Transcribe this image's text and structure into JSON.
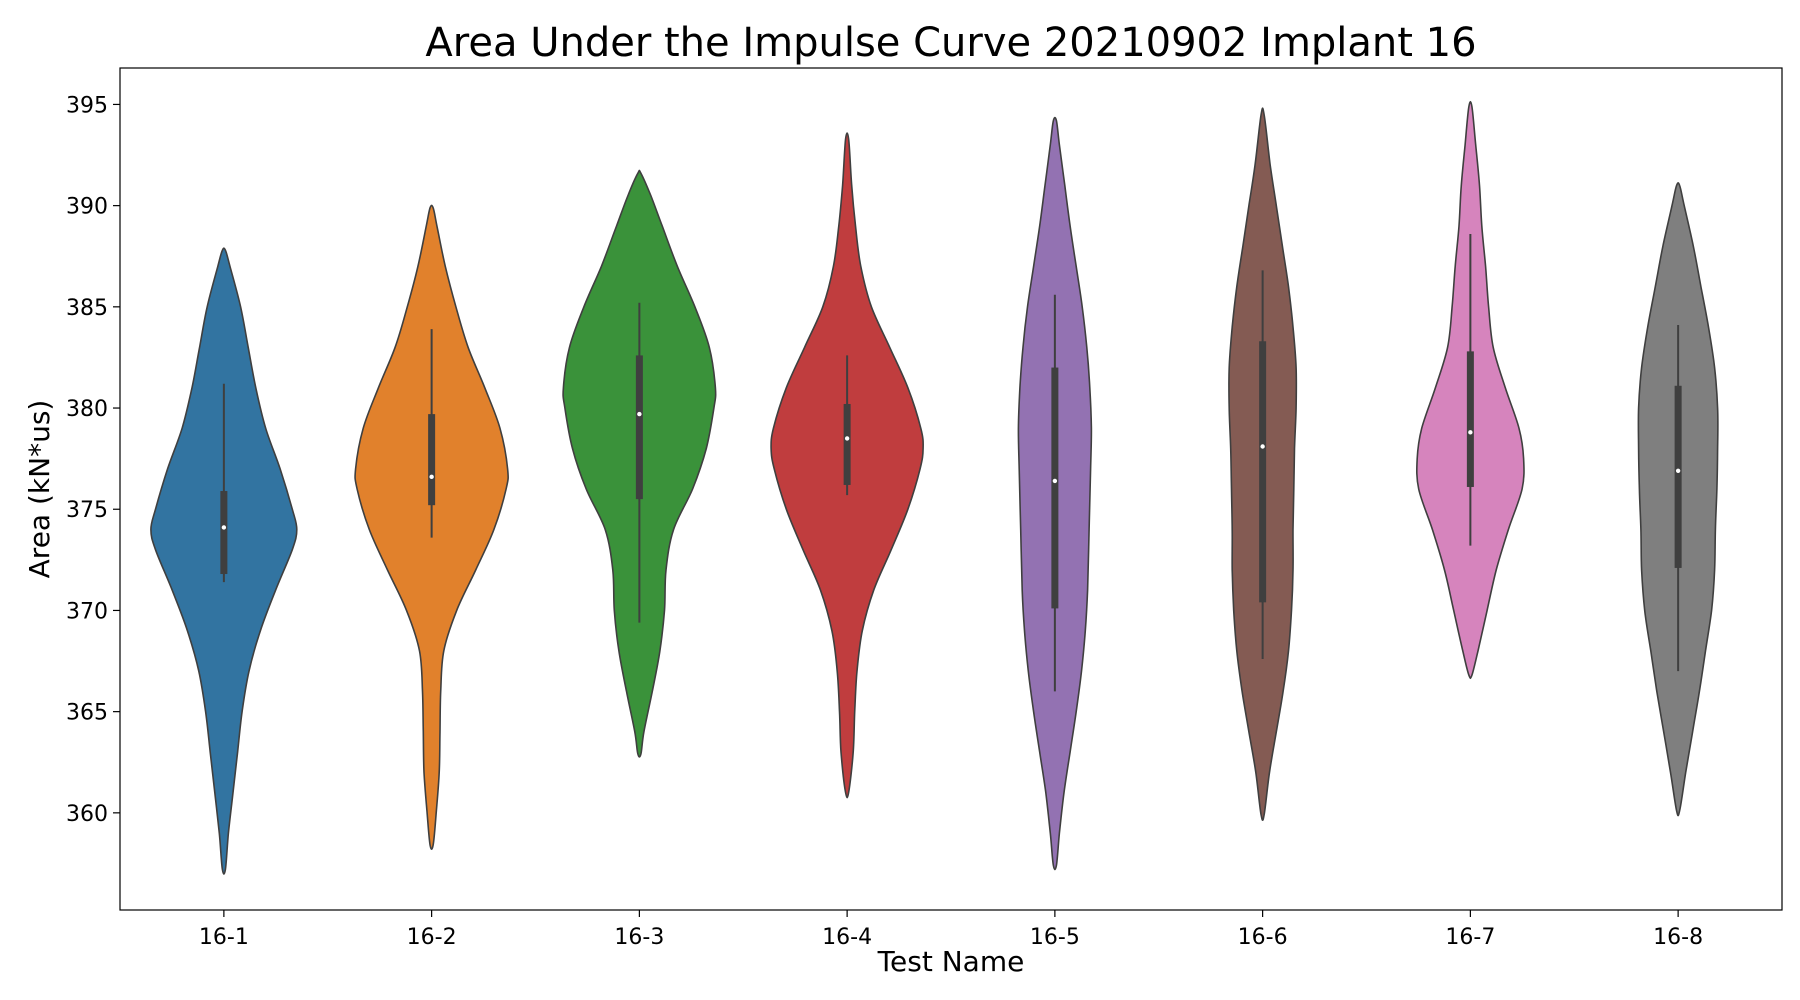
{
  "chart_data": {
    "type": "violin",
    "title": "Area Under the Impulse Curve 20210902 Implant 16",
    "xlabel": "Test Name",
    "ylabel": "Area (kN*us)",
    "ylim": [
      355.2,
      396.8
    ],
    "yticks": [
      360,
      365,
      370,
      375,
      380,
      385,
      390,
      395
    ],
    "grid": false,
    "legend": "none",
    "categories": [
      "16-1",
      "16-2",
      "16-3",
      "16-4",
      "16-5",
      "16-6",
      "16-7",
      "16-8"
    ],
    "colors": [
      "#3274a1",
      "#e1812c",
      "#3a923a",
      "#c03d3e",
      "#9372b2",
      "#845b53",
      "#d684bd",
      "#7f7f7f"
    ],
    "violins": [
      {
        "min": 357.2,
        "max": 387.8,
        "whisker_low": 371.4,
        "q1": 371.8,
        "median": 374.1,
        "q3": 375.9,
        "whisker_high": 381.2,
        "profile": [
          [
            357.2,
            0.02
          ],
          [
            359,
            0.06
          ],
          [
            361,
            0.12
          ],
          [
            363,
            0.18
          ],
          [
            365,
            0.24
          ],
          [
            367,
            0.33
          ],
          [
            369,
            0.48
          ],
          [
            371,
            0.68
          ],
          [
            373,
            0.9
          ],
          [
            374,
            0.96
          ],
          [
            375,
            0.9
          ],
          [
            377,
            0.74
          ],
          [
            379,
            0.55
          ],
          [
            381,
            0.42
          ],
          [
            383,
            0.32
          ],
          [
            385,
            0.22
          ],
          [
            387,
            0.08
          ],
          [
            387.8,
            0.02
          ]
        ]
      },
      {
        "min": 358.4,
        "max": 389.9,
        "whisker_low": 373.6,
        "q1": 375.2,
        "median": 376.6,
        "q3": 379.7,
        "whisker_high": 383.9,
        "profile": [
          [
            358.4,
            0.02
          ],
          [
            360,
            0.06
          ],
          [
            362,
            0.1
          ],
          [
            364,
            0.11
          ],
          [
            366,
            0.12
          ],
          [
            368,
            0.16
          ],
          [
            370,
            0.33
          ],
          [
            372,
            0.58
          ],
          [
            374,
            0.82
          ],
          [
            376,
            0.98
          ],
          [
            377,
            1.0
          ],
          [
            379,
            0.9
          ],
          [
            381,
            0.7
          ],
          [
            383,
            0.48
          ],
          [
            385,
            0.32
          ],
          [
            387,
            0.18
          ],
          [
            389,
            0.07
          ],
          [
            389.9,
            0.02
          ]
        ]
      },
      {
        "min": 362.9,
        "max": 391.6,
        "whisker_low": 369.4,
        "q1": 375.5,
        "median": 379.7,
        "q3": 382.6,
        "whisker_high": 385.2,
        "profile": [
          [
            362.9,
            0.02
          ],
          [
            364,
            0.06
          ],
          [
            366,
            0.17
          ],
          [
            368,
            0.27
          ],
          [
            370,
            0.33
          ],
          [
            372,
            0.35
          ],
          [
            374,
            0.45
          ],
          [
            376,
            0.7
          ],
          [
            378,
            0.88
          ],
          [
            380,
            0.98
          ],
          [
            381,
            1.0
          ],
          [
            383,
            0.92
          ],
          [
            385,
            0.73
          ],
          [
            387,
            0.5
          ],
          [
            389,
            0.3
          ],
          [
            390.5,
            0.15
          ],
          [
            391.6,
            0.02
          ]
        ]
      },
      {
        "min": 361.0,
        "max": 393.3,
        "whisker_low": 375.7,
        "q1": 376.2,
        "median": 378.5,
        "q3": 380.2,
        "whisker_high": 382.6,
        "profile": [
          [
            361,
            0.02
          ],
          [
            363,
            0.08
          ],
          [
            365,
            0.1
          ],
          [
            367,
            0.13
          ],
          [
            369,
            0.2
          ],
          [
            371,
            0.35
          ],
          [
            373,
            0.58
          ],
          [
            375,
            0.8
          ],
          [
            377,
            0.96
          ],
          [
            378,
            1.0
          ],
          [
            379,
            0.97
          ],
          [
            381,
            0.8
          ],
          [
            383,
            0.56
          ],
          [
            385,
            0.32
          ],
          [
            387,
            0.18
          ],
          [
            389,
            0.11
          ],
          [
            391,
            0.06
          ],
          [
            393.3,
            0.02
          ]
        ]
      },
      {
        "min": 357.4,
        "max": 394.2,
        "whisker_low": 366.0,
        "q1": 370.1,
        "median": 376.4,
        "q3": 382.0,
        "whisker_high": 385.6,
        "profile": [
          [
            357.4,
            0.02
          ],
          [
            359,
            0.06
          ],
          [
            361,
            0.12
          ],
          [
            363,
            0.2
          ],
          [
            365,
            0.28
          ],
          [
            367,
            0.35
          ],
          [
            369,
            0.4
          ],
          [
            371,
            0.43
          ],
          [
            374,
            0.45
          ],
          [
            377,
            0.47
          ],
          [
            379,
            0.48
          ],
          [
            381,
            0.46
          ],
          [
            383,
            0.42
          ],
          [
            385,
            0.36
          ],
          [
            387,
            0.28
          ],
          [
            389,
            0.2
          ],
          [
            391,
            0.13
          ],
          [
            393,
            0.06
          ],
          [
            394.2,
            0.02
          ]
        ]
      },
      {
        "min": 359.9,
        "max": 394.5,
        "whisker_low": 367.6,
        "q1": 370.4,
        "median": 378.1,
        "q3": 383.3,
        "whisker_high": 386.8,
        "profile": [
          [
            359.9,
            0.02
          ],
          [
            362,
            0.09
          ],
          [
            364,
            0.18
          ],
          [
            366,
            0.27
          ],
          [
            368,
            0.34
          ],
          [
            370,
            0.38
          ],
          [
            372,
            0.4
          ],
          [
            374,
            0.4
          ],
          [
            376,
            0.41
          ],
          [
            378,
            0.42
          ],
          [
            380,
            0.44
          ],
          [
            382,
            0.44
          ],
          [
            384,
            0.4
          ],
          [
            386,
            0.34
          ],
          [
            388,
            0.26
          ],
          [
            390,
            0.18
          ],
          [
            392,
            0.1
          ],
          [
            394.5,
            0.02
          ]
        ]
      },
      {
        "min": 366.8,
        "max": 394.9,
        "whisker_low": 373.2,
        "q1": 376.1,
        "median": 378.8,
        "q3": 382.8,
        "whisker_high": 388.6,
        "profile": [
          [
            366.8,
            0.02
          ],
          [
            368,
            0.1
          ],
          [
            370,
            0.22
          ],
          [
            372,
            0.34
          ],
          [
            374,
            0.5
          ],
          [
            376,
            0.68
          ],
          [
            377.5,
            0.7
          ],
          [
            379,
            0.64
          ],
          [
            381,
            0.46
          ],
          [
            383,
            0.3
          ],
          [
            385,
            0.24
          ],
          [
            387,
            0.2
          ],
          [
            389,
            0.15
          ],
          [
            391,
            0.12
          ],
          [
            393,
            0.07
          ],
          [
            394.9,
            0.02
          ]
        ]
      },
      {
        "min": 360.1,
        "max": 391.0,
        "whisker_low": 367.0,
        "q1": 372.1,
        "median": 376.9,
        "q3": 381.1,
        "whisker_high": 384.1,
        "profile": [
          [
            360.1,
            0.02
          ],
          [
            362,
            0.1
          ],
          [
            364,
            0.19
          ],
          [
            366,
            0.28
          ],
          [
            368,
            0.36
          ],
          [
            370,
            0.44
          ],
          [
            372,
            0.48
          ],
          [
            374,
            0.49
          ],
          [
            376,
            0.51
          ],
          [
            378,
            0.52
          ],
          [
            380,
            0.52
          ],
          [
            382,
            0.48
          ],
          [
            384,
            0.4
          ],
          [
            386,
            0.3
          ],
          [
            388,
            0.2
          ],
          [
            390,
            0.08
          ],
          [
            391,
            0.02
          ]
        ]
      }
    ]
  }
}
